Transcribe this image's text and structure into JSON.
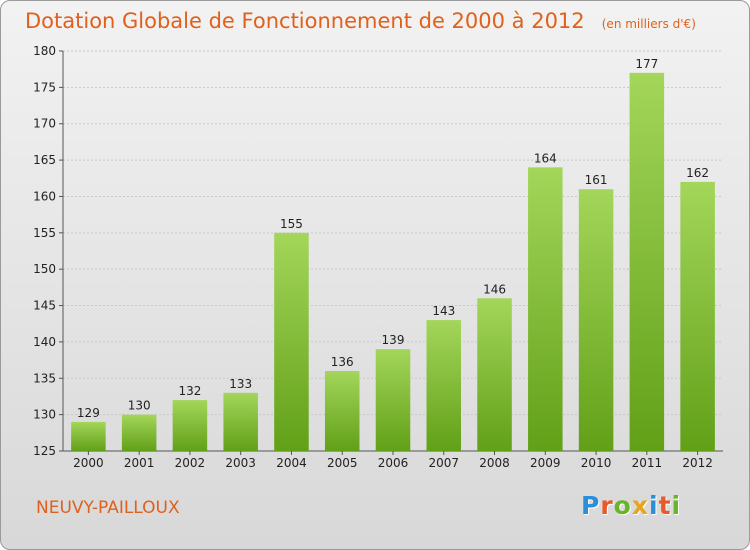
{
  "header": {
    "title": "Dotation Globale de Fonctionnement de 2000 à 2012",
    "subtitle": "(en milliers d'€)"
  },
  "footer": {
    "commune": "NEUVY-PAILLOUX",
    "logo_letters": [
      "P",
      "r",
      "o",
      "x",
      "i",
      "t",
      "i"
    ],
    "logo_colors": [
      "#2a8ed8",
      "#e85a2a",
      "#6ab42a",
      "#e8a41e",
      "#2a8ed8",
      "#e85a2a",
      "#6ab42a"
    ]
  },
  "colors": {
    "bar_top": "#a3d65a",
    "bar_bottom": "#62a018",
    "grid": "#c8c8c8",
    "accent": "#e0601c"
  },
  "chart_data": {
    "type": "bar",
    "title": "Dotation Globale de Fonctionnement de 2000 à 2012",
    "subtitle": "(en milliers d'€)",
    "xlabel": "",
    "ylabel": "",
    "categories": [
      "2000",
      "2001",
      "2002",
      "2003",
      "2004",
      "2005",
      "2006",
      "2007",
      "2008",
      "2009",
      "2010",
      "2011",
      "2012"
    ],
    "values": [
      129,
      130,
      132,
      133,
      155,
      136,
      139,
      143,
      146,
      164,
      161,
      177,
      162
    ],
    "ylim": [
      125,
      180
    ],
    "yticks": [
      125,
      130,
      135,
      140,
      145,
      150,
      155,
      160,
      165,
      170,
      175,
      180
    ],
    "grid": true,
    "legend": "none"
  }
}
